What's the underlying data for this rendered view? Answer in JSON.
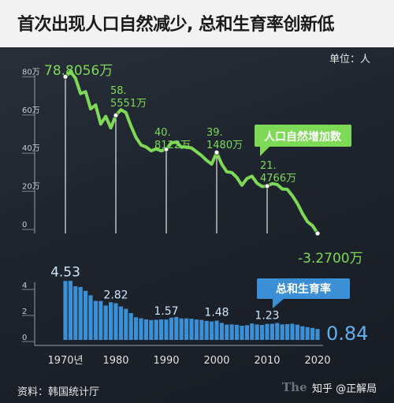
{
  "title": "首次出现人口自然减少, 总和生育率创新低",
  "unit_label": "单位：人",
  "source": "资料：韩国统计厅",
  "watermarks": [
    "The",
    "知乎 @正解局"
  ],
  "colors": {
    "natural_increase": "#7ed957",
    "fertility": "#3b8fd4",
    "background": "#1f252e"
  },
  "chart_data": [
    {
      "type": "line",
      "series_label": "人口自然增加数",
      "ytick_labels": [
        "0",
        "20万",
        "40万",
        "60万",
        "80万"
      ],
      "ylim": [
        -5,
        82
      ],
      "x": [
        1970,
        1971,
        1972,
        1973,
        1974,
        1975,
        1976,
        1977,
        1978,
        1979,
        1980,
        1981,
        1982,
        1983,
        1984,
        1985,
        1986,
        1987,
        1988,
        1989,
        1990,
        1991,
        1992,
        1993,
        1994,
        1995,
        1996,
        1997,
        1998,
        1999,
        2000,
        2001,
        2002,
        2003,
        2004,
        2005,
        2006,
        2007,
        2008,
        2009,
        2010,
        2011,
        2012,
        2013,
        2014,
        2015,
        2016,
        2017,
        2018,
        2019,
        2020
      ],
      "values": [
        78.8,
        81.5,
        78,
        70,
        71,
        62,
        64,
        54,
        58,
        52,
        58.6,
        61.5,
        60,
        53,
        47,
        43,
        42,
        40,
        41,
        40,
        40.8,
        44.2,
        44.5,
        42,
        42,
        41.5,
        39.5,
        37.5,
        35,
        33,
        39.1,
        33,
        29,
        28.6,
        26,
        22,
        25.5,
        26.7,
        23,
        21.3,
        21.5,
        22.8,
        22.3,
        20,
        19.8,
        16.5,
        12.4,
        7.2,
        2.8,
        0.8,
        -3.27
      ],
      "callouts": [
        {
          "x": 1970,
          "value": 78.8,
          "label": [
            "78.8056万"
          ]
        },
        {
          "x": 1980,
          "value": 58.6,
          "label": [
            "58.",
            "5551万"
          ]
        },
        {
          "x": 1990,
          "value": 40.8,
          "label": [
            "40.",
            "8122万"
          ]
        },
        {
          "x": 2000,
          "value": 39.1,
          "label": [
            "39.",
            "1480万"
          ]
        },
        {
          "x": 2010,
          "value": 21.5,
          "label": [
            "21.",
            "4766万"
          ]
        },
        {
          "x": 2020,
          "value": -3.27,
          "label": [
            "-3.2700万"
          ]
        }
      ]
    },
    {
      "type": "bar",
      "series_label": "总和生育率",
      "ytick_labels": [
        "0",
        "2",
        "4"
      ],
      "ylim": [
        0,
        4.6
      ],
      "x": [
        1970,
        1971,
        1972,
        1973,
        1974,
        1975,
        1976,
        1977,
        1978,
        1979,
        1980,
        1981,
        1982,
        1983,
        1984,
        1985,
        1986,
        1987,
        1988,
        1989,
        1990,
        1991,
        1992,
        1993,
        1994,
        1995,
        1996,
        1997,
        1998,
        1999,
        2000,
        2001,
        2002,
        2003,
        2004,
        2005,
        2006,
        2007,
        2008,
        2009,
        2010,
        2011,
        2012,
        2013,
        2014,
        2015,
        2016,
        2017,
        2018,
        2019,
        2020
      ],
      "values": [
        4.53,
        4.54,
        4.12,
        4.07,
        3.77,
        3.43,
        3.0,
        2.99,
        2.64,
        2.9,
        2.82,
        2.57,
        2.39,
        2.06,
        1.74,
        1.66,
        1.58,
        1.53,
        1.55,
        1.58,
        1.57,
        1.71,
        1.76,
        1.65,
        1.66,
        1.63,
        1.57,
        1.54,
        1.46,
        1.42,
        1.48,
        1.31,
        1.18,
        1.19,
        1.16,
        1.09,
        1.13,
        1.26,
        1.19,
        1.15,
        1.23,
        1.24,
        1.3,
        1.19,
        1.21,
        1.24,
        1.17,
        1.05,
        0.98,
        0.92,
        0.84
      ],
      "value_labels": [
        {
          "x": 1970,
          "text": "4.53"
        },
        {
          "x": 1980,
          "text": "2.82"
        },
        {
          "x": 1990,
          "text": "1.57"
        },
        {
          "x": 2000,
          "text": "1.48"
        },
        {
          "x": 2010,
          "text": "1.23"
        },
        {
          "x": 2020,
          "text": "0.84"
        }
      ]
    }
  ],
  "x_tick_labels": [
    {
      "x": 1970,
      "text": "1970년"
    },
    {
      "x": 1980,
      "text": "1980"
    },
    {
      "x": 1990,
      "text": "1990"
    },
    {
      "x": 2000,
      "text": "2000"
    },
    {
      "x": 2010,
      "text": "2010"
    },
    {
      "x": 2020,
      "text": "2020"
    }
  ]
}
